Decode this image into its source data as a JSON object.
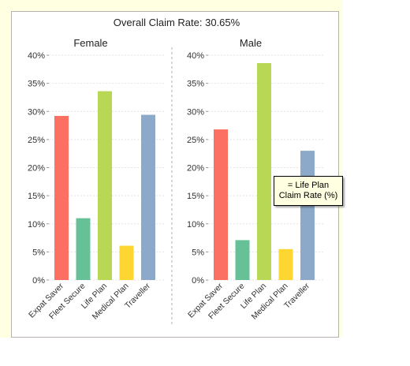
{
  "chart_data": {
    "type": "bar",
    "title": "Overall Claim Rate: 30.65%",
    "categories": [
      "Expat Saver",
      "Fleet Secure",
      "Life Plan",
      "Medical Plan",
      "Traveller"
    ],
    "colors": [
      "#fb7062",
      "#66c296",
      "#b8d855",
      "#fed631",
      "#8da9c9"
    ],
    "ylim": [
      0,
      40
    ],
    "yticks": [
      "0%",
      "5%",
      "10%",
      "15%",
      "20%",
      "25%",
      "30%",
      "35%",
      "40%"
    ],
    "grid": true,
    "panels": [
      {
        "name": "Female",
        "values": [
          29.2,
          11.0,
          33.6,
          6.1,
          29.4
        ]
      },
      {
        "name": "Male",
        "values": [
          26.8,
          7.1,
          38.6,
          5.5,
          23.0
        ]
      }
    ]
  },
  "tooltip": {
    "line1": "= Life Plan",
    "line2": "Claim Rate (%)"
  }
}
